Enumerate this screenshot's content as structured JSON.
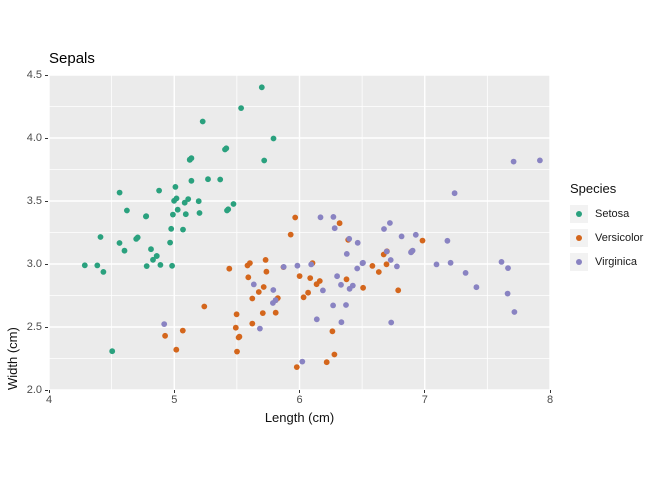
{
  "title": "Sepals",
  "colors": {
    "background": "#ffffff",
    "panel_bg": "#ebebeb",
    "grid": "#ffffff",
    "tick_mark": "#333333",
    "tick_label": "#4d4d4d",
    "text": "#000000",
    "legend_key_bg": "#f2f2f2",
    "setosa": "#2aa17e",
    "versicolor": "#d4661c",
    "virginica": "#8983c2"
  },
  "legend": {
    "title": "Species",
    "items": [
      {
        "label": "Setosa",
        "color": "#2aa17e"
      },
      {
        "label": "Versicolor",
        "color": "#d4661c"
      },
      {
        "label": "Virginica",
        "color": "#8983c2"
      }
    ]
  },
  "chart_data": {
    "type": "scatter",
    "title": "Sepals",
    "xlabel": "Length (cm)",
    "ylabel": "Width (cm)",
    "xlim": [
      4,
      8
    ],
    "ylim": [
      2.0,
      4.5
    ],
    "grid": true,
    "legend_position": "right",
    "point_style": "jittered",
    "x_major_ticks": [
      4,
      5,
      6,
      7,
      8
    ],
    "x_tick_labels": [
      "4",
      "5",
      "6",
      "7",
      "8"
    ],
    "x_minor_ticks": [
      4.5,
      5.5,
      6.5,
      7.5
    ],
    "y_major_ticks": [
      2.0,
      2.5,
      3.0,
      3.5,
      4.0,
      4.5
    ],
    "y_tick_labels": [
      "2.0",
      "2.5",
      "3.0",
      "3.5",
      "4.0",
      "4.5"
    ],
    "y_minor_ticks": [
      2.25,
      2.75,
      3.25,
      3.75,
      4.25
    ],
    "series": [
      {
        "name": "Setosa",
        "color": "#2aa17e",
        "points": [
          [
            5.1,
            3.5
          ],
          [
            4.9,
            3.0
          ],
          [
            4.7,
            3.2
          ],
          [
            4.6,
            3.1
          ],
          [
            5.0,
            3.6
          ],
          [
            5.4,
            3.9
          ],
          [
            4.6,
            3.4
          ],
          [
            5.0,
            3.4
          ],
          [
            4.4,
            2.9
          ],
          [
            4.9,
            3.1
          ],
          [
            5.4,
            3.7
          ],
          [
            4.8,
            3.4
          ],
          [
            4.8,
            3.0
          ],
          [
            4.3,
            3.0
          ],
          [
            5.8,
            4.0
          ],
          [
            5.7,
            4.4
          ],
          [
            5.4,
            3.9
          ],
          [
            5.1,
            3.5
          ],
          [
            5.7,
            3.8
          ],
          [
            5.1,
            3.8
          ],
          [
            5.4,
            3.4
          ],
          [
            5.1,
            3.7
          ],
          [
            4.6,
            3.6
          ],
          [
            5.1,
            3.3
          ],
          [
            4.8,
            3.4
          ],
          [
            5.0,
            3.0
          ],
          [
            5.0,
            3.4
          ],
          [
            5.2,
            3.5
          ],
          [
            5.2,
            3.4
          ],
          [
            4.7,
            3.2
          ],
          [
            4.8,
            3.1
          ],
          [
            5.4,
            3.4
          ],
          [
            5.2,
            4.1
          ],
          [
            5.5,
            4.2
          ],
          [
            4.9,
            3.1
          ],
          [
            5.0,
            3.2
          ],
          [
            5.5,
            3.5
          ],
          [
            4.9,
            3.6
          ],
          [
            4.4,
            3.0
          ],
          [
            5.1,
            3.4
          ],
          [
            5.0,
            3.5
          ],
          [
            4.5,
            2.3
          ],
          [
            4.4,
            3.2
          ],
          [
            5.0,
            3.5
          ],
          [
            5.1,
            3.8
          ],
          [
            4.8,
            3.0
          ],
          [
            5.1,
            3.8
          ],
          [
            4.6,
            3.2
          ],
          [
            5.3,
            3.7
          ],
          [
            5.0,
            3.3
          ]
        ]
      },
      {
        "name": "Versicolor",
        "color": "#d4661c",
        "points": [
          [
            7.0,
            3.2
          ],
          [
            6.4,
            3.2
          ],
          [
            6.9,
            3.1
          ],
          [
            5.5,
            2.3
          ],
          [
            6.5,
            2.8
          ],
          [
            5.7,
            2.8
          ],
          [
            6.3,
            3.3
          ],
          [
            4.9,
            2.4
          ],
          [
            6.6,
            2.9
          ],
          [
            5.2,
            2.7
          ],
          [
            5.0,
            2.0
          ],
          [
            5.9,
            3.0
          ],
          [
            6.0,
            2.2
          ],
          [
            6.1,
            2.9
          ],
          [
            5.6,
            2.9
          ],
          [
            6.7,
            3.1
          ],
          [
            5.6,
            3.0
          ],
          [
            5.8,
            2.7
          ],
          [
            6.2,
            2.2
          ],
          [
            5.6,
            2.5
          ],
          [
            5.9,
            3.2
          ],
          [
            6.1,
            2.8
          ],
          [
            6.3,
            2.5
          ],
          [
            6.1,
            2.8
          ],
          [
            6.4,
            2.9
          ],
          [
            6.6,
            3.0
          ],
          [
            6.8,
            2.8
          ],
          [
            6.7,
            3.0
          ],
          [
            6.0,
            2.9
          ],
          [
            5.7,
            2.6
          ],
          [
            5.5,
            2.4
          ],
          [
            5.5,
            2.4
          ],
          [
            5.8,
            2.7
          ],
          [
            6.0,
            2.7
          ],
          [
            5.4,
            3.0
          ],
          [
            6.0,
            3.4
          ],
          [
            6.7,
            3.1
          ],
          [
            6.3,
            2.3
          ],
          [
            5.6,
            3.0
          ],
          [
            5.5,
            2.5
          ],
          [
            5.5,
            2.6
          ],
          [
            6.1,
            3.0
          ],
          [
            5.8,
            2.6
          ],
          [
            5.0,
            2.3
          ],
          [
            5.6,
            2.7
          ],
          [
            5.7,
            3.0
          ],
          [
            5.7,
            2.9
          ],
          [
            6.2,
            2.9
          ],
          [
            5.1,
            2.5
          ],
          [
            5.7,
            2.8
          ]
        ]
      },
      {
        "name": "Virginica",
        "color": "#8983c2",
        "points": [
          [
            6.3,
            3.3
          ],
          [
            5.8,
            2.7
          ],
          [
            7.1,
            3.0
          ],
          [
            6.3,
            2.9
          ],
          [
            6.5,
            3.0
          ],
          [
            7.6,
            3.0
          ],
          [
            4.9,
            2.5
          ],
          [
            7.3,
            2.9
          ],
          [
            6.7,
            2.5
          ],
          [
            7.2,
            3.6
          ],
          [
            6.5,
            3.2
          ],
          [
            6.4,
            2.7
          ],
          [
            6.8,
            3.0
          ],
          [
            5.7,
            2.5
          ],
          [
            5.8,
            2.8
          ],
          [
            6.4,
            3.2
          ],
          [
            6.5,
            3.0
          ],
          [
            7.7,
            3.8
          ],
          [
            7.7,
            2.6
          ],
          [
            6.0,
            2.2
          ],
          [
            6.9,
            3.2
          ],
          [
            5.6,
            2.8
          ],
          [
            7.7,
            2.8
          ],
          [
            6.3,
            2.7
          ],
          [
            6.7,
            3.3
          ],
          [
            7.2,
            3.2
          ],
          [
            6.2,
            2.8
          ],
          [
            6.1,
            3.0
          ],
          [
            6.4,
            2.8
          ],
          [
            7.2,
            3.0
          ],
          [
            7.4,
            2.8
          ],
          [
            7.9,
            3.8
          ],
          [
            6.4,
            2.8
          ],
          [
            6.3,
            2.8
          ],
          [
            6.1,
            2.6
          ],
          [
            7.7,
            3.0
          ],
          [
            6.3,
            3.4
          ],
          [
            6.4,
            3.1
          ],
          [
            6.0,
            3.0
          ],
          [
            6.9,
            3.1
          ],
          [
            6.7,
            3.1
          ],
          [
            6.9,
            3.1
          ],
          [
            5.8,
            2.7
          ],
          [
            6.8,
            3.2
          ],
          [
            6.7,
            3.3
          ],
          [
            6.7,
            3.0
          ],
          [
            6.3,
            2.5
          ],
          [
            6.5,
            3.0
          ],
          [
            6.2,
            3.4
          ],
          [
            5.9,
            3.0
          ]
        ]
      }
    ]
  }
}
